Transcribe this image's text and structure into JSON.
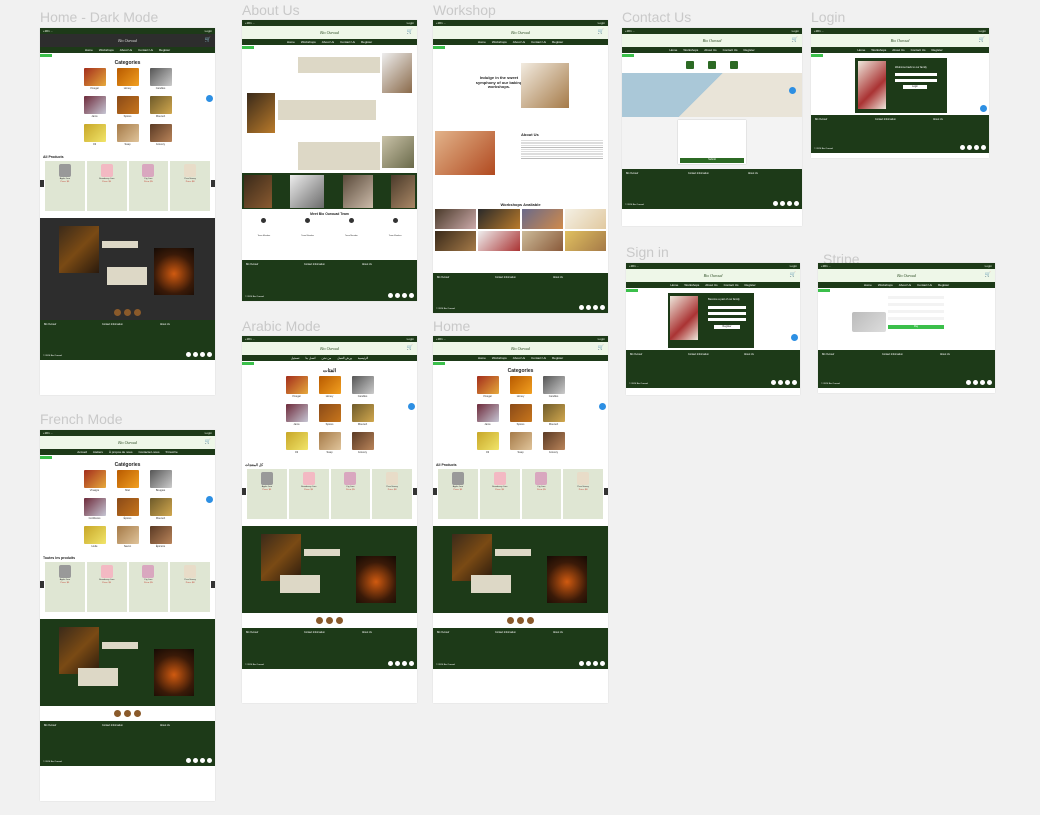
{
  "labels": {
    "home_dark": "Home - Dark Mode",
    "about": "About Us",
    "workshop": "Workshop",
    "contact": "Contact Us",
    "login": "Login",
    "french": "French Mode",
    "arabic": "Arabic Mode",
    "home": "Home",
    "signin": "Sign in",
    "stripe": "Stripe"
  },
  "brand": {
    "logo": "Bio Ouroud",
    "phone": "+961 ...",
    "login": "Login"
  },
  "nav": [
    "Home",
    "Workshops",
    "About Us",
    "Contact Us",
    "Register"
  ],
  "nav_fr": [
    "Accueil",
    "Ateliers",
    "À propos de nous",
    "Contactez-nous",
    "S'inscrire"
  ],
  "nav_ar": [
    "الرئيسية",
    "ورش العمل",
    "من نحن",
    "اتصل بنا",
    "تسجيل"
  ],
  "categories_title": "Categories",
  "categories_title_fr": "Catégories",
  "categories_title_ar": "الفئات",
  "categories": [
    "Vinegar",
    "Honey",
    "Candles",
    "Jams",
    "Spices",
    "Mouneh",
    "Oil",
    "Soap",
    "Grocery"
  ],
  "categories_fr": [
    "Vinaigre",
    "Miel",
    "Bougies",
    "Confitures",
    "Épices",
    "Mouneh",
    "Huile",
    "Savon",
    "Épicerie"
  ],
  "all_products": "All Products",
  "all_products_fr": "Toutes les produits",
  "all_products_ar": "كل المنتجات",
  "products": [
    {
      "name": "Apple Jam",
      "price": "Price: $5"
    },
    {
      "name": "Strawberry Jam",
      "price": "Price: $5"
    },
    {
      "name": "Fig Jam",
      "price": "Price: $5"
    },
    {
      "name": "Pure Honey",
      "price": "Price: $8"
    }
  ],
  "about": {
    "team_title": "Meet Bio Ourouad Team",
    "member1": "Team Member",
    "member2": "Team Member",
    "member3": "Team Member",
    "member4": "Team Member"
  },
  "workshop": {
    "hero": "Indulge in the sweet symphony of our baking workshops.",
    "about_title": "About Us",
    "available": "Workshops Available"
  },
  "contact": {
    "submit": "Submit"
  },
  "login": {
    "title": "Welcome back to our family",
    "button": "Login"
  },
  "signin": {
    "title": "Become a part of our family",
    "button": "Register"
  },
  "stripe": {
    "pay": "Pay"
  },
  "footer": {
    "contact": "Contact Information",
    "about": "About Us",
    "copyright": "© 2024 Bio Ouroud"
  },
  "colors": {
    "primary": "#1d3a18",
    "accent": "#3bbf4b",
    "bg": "#f1f1f1"
  }
}
